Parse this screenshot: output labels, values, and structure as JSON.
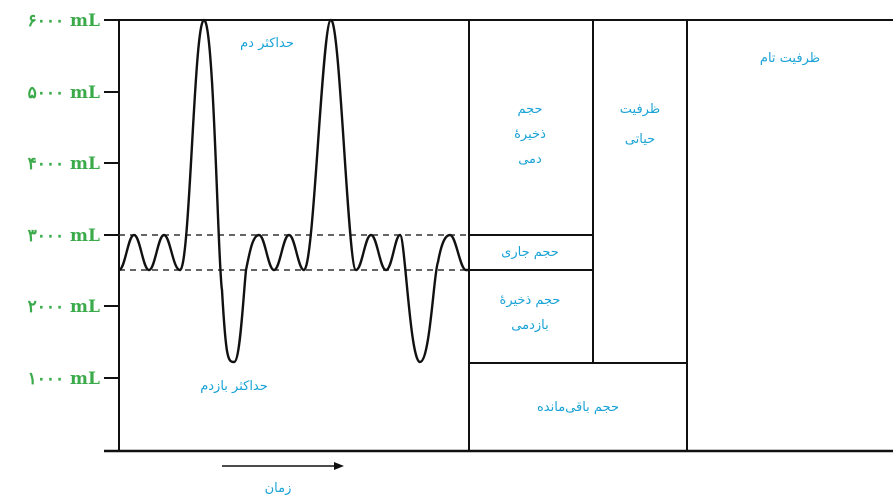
{
  "y_axis": {
    "ticks": [
      {
        "value": 6000,
        "label": "۶۰۰۰ mL"
      },
      {
        "value": 5000,
        "label": "۵۰۰۰ mL"
      },
      {
        "value": 4000,
        "label": "۴۰۰۰ mL"
      },
      {
        "value": 3000,
        "label": "۳۰۰۰ mL"
      },
      {
        "value": 2000,
        "label": "۲۰۰۰ mL"
      },
      {
        "value": 1000,
        "label": "۱۰۰۰ mL"
      }
    ]
  },
  "labels": {
    "max_inhale": "حداکثر دم",
    "max_exhale": "حداکثر بازدم",
    "time": "زمان"
  },
  "columns": {
    "irv": [
      "حجم",
      "ذخیرهٔ",
      "دمی"
    ],
    "tidal": "حجم جاری",
    "erv": [
      "حجم ذخیرهٔ",
      "بازدمی"
    ],
    "residual": "حجم باقی‌مانده",
    "vital": [
      "ظرفیت",
      "حیاتی"
    ],
    "total": "ظرفیت تام"
  },
  "colors": {
    "tick": "#3aaa4a",
    "label": "#1aa3d6",
    "line": "#111111"
  }
}
